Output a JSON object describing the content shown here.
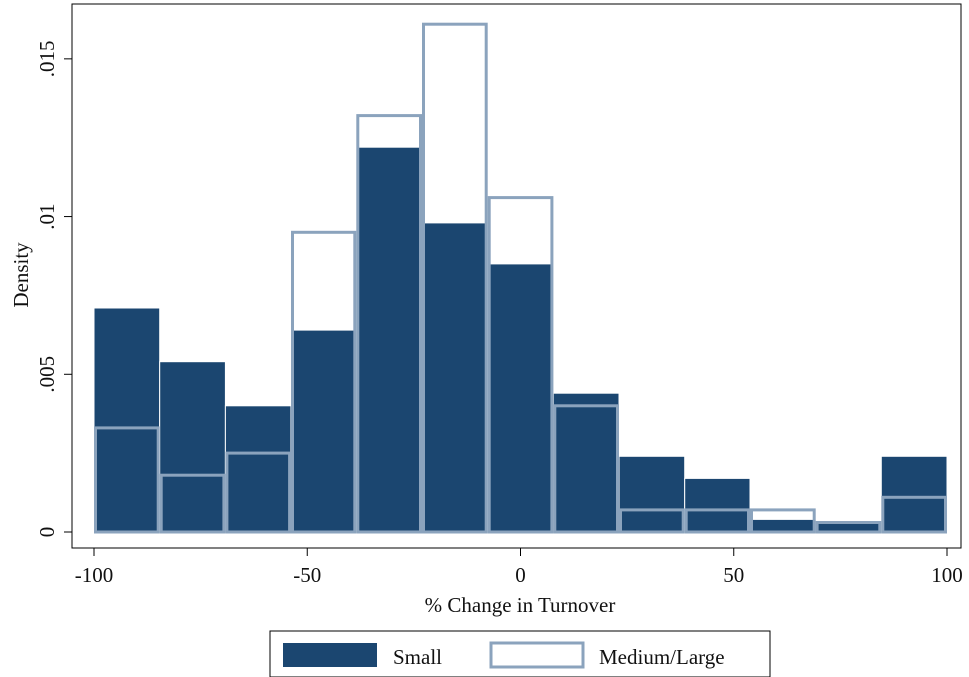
{
  "chart_data": {
    "type": "bar",
    "subtype": "overlaid-histogram",
    "title": "",
    "xlabel": "% Change in Turnover",
    "ylabel": "Density",
    "xlim": [
      -100,
      100
    ],
    "ylim": [
      0,
      0.0162
    ],
    "xticks": [
      {
        "value": -100,
        "label": "-100"
      },
      {
        "value": -50,
        "label": "-50"
      },
      {
        "value": 0,
        "label": "0"
      },
      {
        "value": 50,
        "label": "50"
      },
      {
        "value": 100,
        "label": "100"
      }
    ],
    "yticks": [
      {
        "value": 0,
        "label": "0"
      },
      {
        "value": 0.005,
        "label": ".005"
      },
      {
        "value": 0.01,
        "label": ".01"
      },
      {
        "value": 0.015,
        "label": ".015"
      }
    ],
    "bins": [
      [
        -100,
        -84.6
      ],
      [
        -84.6,
        -69.2
      ],
      [
        -69.2,
        -53.8
      ],
      [
        -53.8,
        -38.5
      ],
      [
        -38.5,
        -23.1
      ],
      [
        -23.1,
        -7.7
      ],
      [
        -7.7,
        7.7
      ],
      [
        7.7,
        23.1
      ],
      [
        23.1,
        38.5
      ],
      [
        38.5,
        53.8
      ],
      [
        53.8,
        69.2
      ],
      [
        69.2,
        84.6
      ],
      [
        84.6,
        100
      ]
    ],
    "series": [
      {
        "name": "Small",
        "style": "filled",
        "color": "#1b4670",
        "values": [
          0.0071,
          0.0054,
          0.004,
          0.0064,
          0.0122,
          0.0098,
          0.0085,
          0.0044,
          0.0024,
          0.0017,
          0.0004,
          0.0003,
          0.0024
        ]
      },
      {
        "name": "Medium/Large",
        "style": "outline",
        "color": "#8ba3bd",
        "values": [
          0.0033,
          0.0018,
          0.0025,
          0.0095,
          0.0132,
          0.0161,
          0.0106,
          0.004,
          0.0007,
          0.0007,
          0.0007,
          0.0003,
          0.0011
        ]
      }
    ],
    "grid": false,
    "legend_position": "bottom"
  }
}
